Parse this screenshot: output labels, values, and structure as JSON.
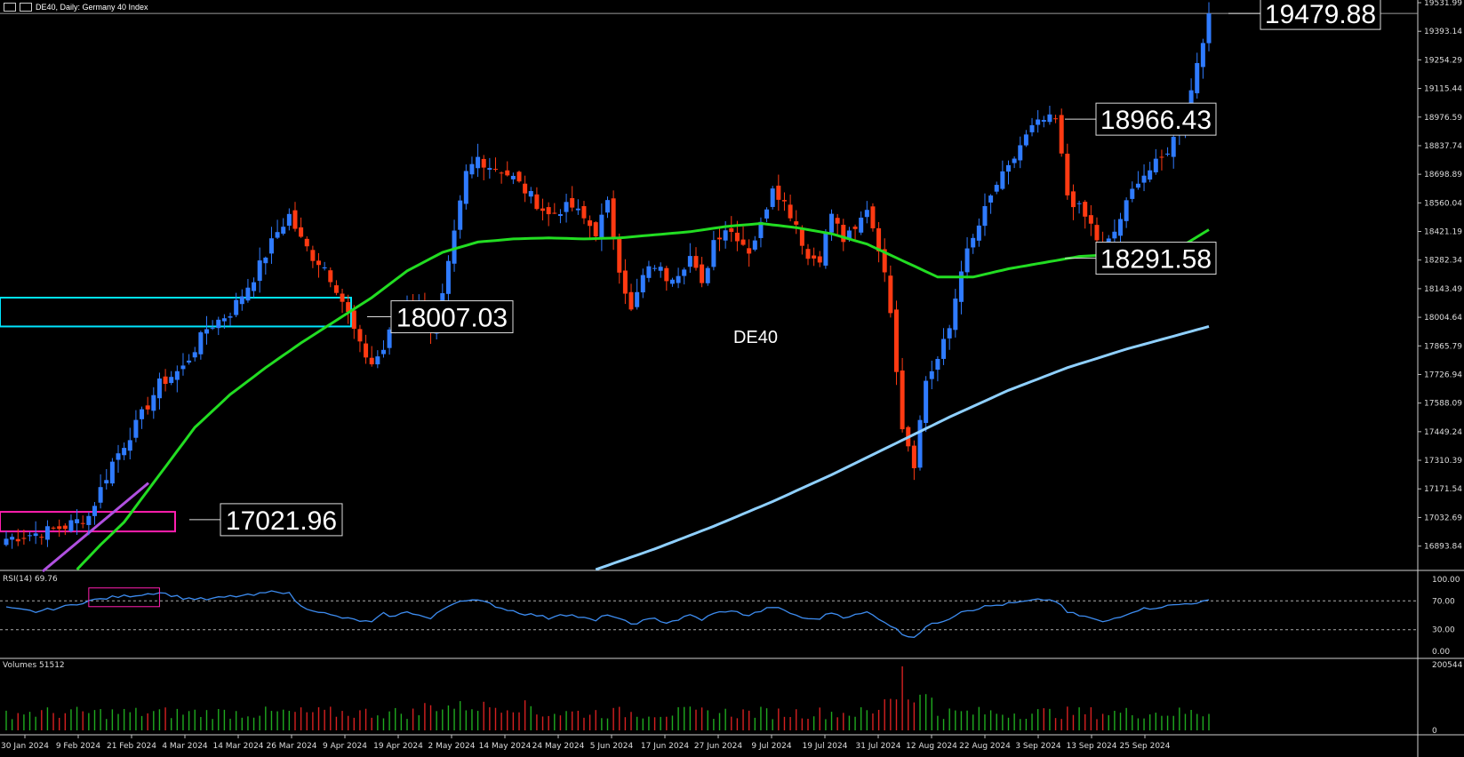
{
  "header": {
    "title": "DE40, Daily:  Germany 40 Index"
  },
  "panels": {
    "rsi_label": "RSI(14) 69.76",
    "volume_label": "Volumes 51512"
  },
  "symbol_watermark": "DE40",
  "colors": {
    "background": "#000000",
    "bull": "#2f7bff",
    "bear": "#ff3a12",
    "ma_fast": "#22dd22",
    "ma_slow": "#8fd0ff",
    "rsi": "#3d8cf0",
    "cyan_box": "#00e5ff",
    "magenta_box": "#ff1fb0",
    "trendline": "#b050e0",
    "vol_up": "#1faa1f",
    "vol_down": "#d62020"
  },
  "annotations": [
    {
      "text": "19479.88",
      "price": 19479.88,
      "anchor": "right-of-price-axis"
    },
    {
      "text": "18966.43",
      "price": 18966.43,
      "anchor": "top-right"
    },
    {
      "text": "18291.58",
      "price": 18291.58,
      "anchor": "right"
    },
    {
      "text": "18007.03",
      "price": 18007.03,
      "anchor": "left-middle"
    },
    {
      "text": "17021.96",
      "price": 17021.96,
      "anchor": "left-lower"
    }
  ],
  "chart_data": [
    {
      "type": "candlestick",
      "title": "DE40, Daily:  Germany 40 Index",
      "y_ticks": [
        "19531.99",
        "19393.14",
        "19254.29",
        "19115.44",
        "18976.59",
        "18837.74",
        "18698.89",
        "18560.04",
        "18421.19",
        "18282.34",
        "18143.49",
        "18004.64",
        "17865.79",
        "17726.94",
        "17588.09",
        "17449.24",
        "17310.39",
        "17171.54",
        "17032.69",
        "16893.84"
      ],
      "ylim": [
        16780,
        19545
      ],
      "x_ticks": [
        "30 Jan 2024",
        "9 Feb 2024",
        "21 Feb 2024",
        "4 Mar 2024",
        "14 Mar 2024",
        "26 Mar 2024",
        "9 Apr 2024",
        "19 Apr 2024",
        "2 May 2024",
        "14 May 2024",
        "24 May 2024",
        "5 Jun 2024",
        "17 Jun 2024",
        "27 Jun 2024",
        "9 Jul 2024",
        "19 Jul 2024",
        "31 Jul 2024",
        "12 Aug 2024",
        "22 Aug 2024",
        "3 Sep 2024",
        "13 Sep 2024",
        "25 Sep 2024"
      ],
      "close_path": [
        [
          0,
          16930
        ],
        [
          6,
          16960
        ],
        [
          10,
          16990
        ],
        [
          14,
          17040
        ],
        [
          18,
          17300
        ],
        [
          22,
          17480
        ],
        [
          26,
          17680
        ],
        [
          30,
          17760
        ],
        [
          34,
          17950
        ],
        [
          38,
          18030
        ],
        [
          42,
          18200
        ],
        [
          46,
          18420
        ],
        [
          48,
          18500
        ],
        [
          50,
          18380
        ],
        [
          52,
          18300
        ],
        [
          54,
          18250
        ],
        [
          56,
          18150
        ],
        [
          58,
          18020
        ],
        [
          60,
          17860
        ],
        [
          62,
          17780
        ],
        [
          64,
          17850
        ],
        [
          66,
          18000
        ],
        [
          68,
          18100
        ],
        [
          70,
          18050
        ],
        [
          72,
          17950
        ],
        [
          74,
          18100
        ],
        [
          76,
          18400
        ],
        [
          78,
          18700
        ],
        [
          80,
          18780
        ],
        [
          82,
          18740
        ],
        [
          84,
          18720
        ],
        [
          86,
          18680
        ],
        [
          88,
          18620
        ],
        [
          90,
          18560
        ],
        [
          92,
          18500
        ],
        [
          94,
          18530
        ],
        [
          96,
          18540
        ],
        [
          98,
          18480
        ],
        [
          100,
          18420
        ],
        [
          102,
          18550
        ],
        [
          104,
          18250
        ],
        [
          106,
          18030
        ],
        [
          108,
          18200
        ],
        [
          110,
          18260
        ],
        [
          112,
          18200
        ],
        [
          114,
          18230
        ],
        [
          116,
          18300
        ],
        [
          118,
          18150
        ],
        [
          120,
          18380
        ],
        [
          122,
          18440
        ],
        [
          124,
          18400
        ],
        [
          126,
          18330
        ],
        [
          128,
          18450
        ],
        [
          130,
          18650
        ],
        [
          132,
          18560
        ],
        [
          134,
          18460
        ],
        [
          136,
          18290
        ],
        [
          138,
          18300
        ],
        [
          140,
          18510
        ],
        [
          142,
          18380
        ],
        [
          144,
          18420
        ],
        [
          146,
          18540
        ],
        [
          148,
          18350
        ],
        [
          150,
          18050
        ],
        [
          152,
          17480
        ],
        [
          154,
          17300
        ],
        [
          156,
          17700
        ],
        [
          158,
          17800
        ],
        [
          160,
          17950
        ],
        [
          162,
          18250
        ],
        [
          164,
          18380
        ],
        [
          166,
          18520
        ],
        [
          168,
          18650
        ],
        [
          170,
          18720
        ],
        [
          172,
          18840
        ],
        [
          174,
          18920
        ],
        [
          176,
          18960
        ],
        [
          178,
          18960
        ],
        [
          180,
          18600
        ],
        [
          182,
          18530
        ],
        [
          184,
          18450
        ],
        [
          186,
          18320
        ],
        [
          188,
          18420
        ],
        [
          190,
          18550
        ],
        [
          192,
          18680
        ],
        [
          194,
          18720
        ],
        [
          196,
          18770
        ],
        [
          198,
          18870
        ],
        [
          200,
          18960
        ],
        [
          202,
          19250
        ],
        [
          204,
          19479.88
        ]
      ],
      "moving_average_fast_path": [
        [
          12,
          16780
        ],
        [
          16,
          16900
        ],
        [
          20,
          17010
        ],
        [
          26,
          17240
        ],
        [
          32,
          17470
        ],
        [
          38,
          17630
        ],
        [
          44,
          17760
        ],
        [
          50,
          17880
        ],
        [
          56,
          17990
        ],
        [
          62,
          18100
        ],
        [
          68,
          18230
        ],
        [
          74,
          18320
        ],
        [
          80,
          18370
        ],
        [
          86,
          18385
        ],
        [
          92,
          18390
        ],
        [
          98,
          18385
        ],
        [
          104,
          18390
        ],
        [
          110,
          18405
        ],
        [
          116,
          18420
        ],
        [
          122,
          18445
        ],
        [
          128,
          18460
        ],
        [
          134,
          18440
        ],
        [
          140,
          18410
        ],
        [
          146,
          18360
        ],
        [
          152,
          18280
        ],
        [
          158,
          18200
        ],
        [
          164,
          18200
        ],
        [
          170,
          18240
        ],
        [
          176,
          18270
        ],
        [
          182,
          18300
        ],
        [
          188,
          18310
        ],
        [
          194,
          18330
        ],
        [
          200,
          18360
        ],
        [
          204,
          18430
        ]
      ],
      "moving_average_slow_path": [
        [
          100,
          16780
        ],
        [
          110,
          16880
        ],
        [
          120,
          16990
        ],
        [
          130,
          17110
        ],
        [
          140,
          17240
        ],
        [
          150,
          17380
        ],
        [
          160,
          17520
        ],
        [
          170,
          17650
        ],
        [
          180,
          17760
        ],
        [
          190,
          17850
        ],
        [
          204,
          17960
        ]
      ],
      "rsi": {
        "levels": [
          100,
          70,
          30,
          0
        ],
        "level_labels": [
          "100.00",
          "70.00",
          "30.00",
          "0.00"
        ],
        "values_path": [
          [
            0,
            60
          ],
          [
            5,
            55
          ],
          [
            10,
            62
          ],
          [
            14,
            70
          ],
          [
            18,
            75
          ],
          [
            22,
            78
          ],
          [
            26,
            82
          ],
          [
            30,
            74
          ],
          [
            34,
            72
          ],
          [
            38,
            76
          ],
          [
            42,
            78
          ],
          [
            46,
            84
          ],
          [
            48,
            80
          ],
          [
            50,
            62
          ],
          [
            52,
            58
          ],
          [
            55,
            50
          ],
          [
            58,
            45
          ],
          [
            62,
            40
          ],
          [
            64,
            52
          ],
          [
            66,
            48
          ],
          [
            68,
            56
          ],
          [
            70,
            50
          ],
          [
            72,
            45
          ],
          [
            74,
            58
          ],
          [
            76,
            68
          ],
          [
            78,
            72
          ],
          [
            80,
            70
          ],
          [
            82,
            66
          ],
          [
            84,
            60
          ],
          [
            86,
            56
          ],
          [
            88,
            52
          ],
          [
            90,
            50
          ],
          [
            92,
            46
          ],
          [
            94,
            52
          ],
          [
            96,
            50
          ],
          [
            98,
            46
          ],
          [
            100,
            42
          ],
          [
            102,
            52
          ],
          [
            104,
            44
          ],
          [
            106,
            38
          ],
          [
            108,
            42
          ],
          [
            110,
            45
          ],
          [
            112,
            40
          ],
          [
            114,
            44
          ],
          [
            116,
            50
          ],
          [
            118,
            44
          ],
          [
            120,
            52
          ],
          [
            122,
            56
          ],
          [
            124,
            54
          ],
          [
            126,
            50
          ],
          [
            128,
            56
          ],
          [
            130,
            62
          ],
          [
            132,
            56
          ],
          [
            134,
            50
          ],
          [
            136,
            44
          ],
          [
            138,
            46
          ],
          [
            140,
            54
          ],
          [
            142,
            48
          ],
          [
            144,
            50
          ],
          [
            146,
            54
          ],
          [
            148,
            46
          ],
          [
            150,
            36
          ],
          [
            152,
            24
          ],
          [
            154,
            20
          ],
          [
            156,
            34
          ],
          [
            158,
            40
          ],
          [
            160,
            46
          ],
          [
            162,
            56
          ],
          [
            164,
            58
          ],
          [
            166,
            62
          ],
          [
            168,
            64
          ],
          [
            170,
            66
          ],
          [
            172,
            68
          ],
          [
            174,
            70
          ],
          [
            176,
            72
          ],
          [
            178,
            70
          ],
          [
            180,
            54
          ],
          [
            182,
            50
          ],
          [
            184,
            46
          ],
          [
            186,
            40
          ],
          [
            188,
            46
          ],
          [
            190,
            52
          ],
          [
            192,
            58
          ],
          [
            194,
            60
          ],
          [
            196,
            62
          ],
          [
            198,
            64
          ],
          [
            200,
            66
          ],
          [
            202,
            68
          ],
          [
            204,
            69.76
          ]
        ]
      },
      "volume": {
        "axis_labels": [
          "200544",
          "0"
        ],
        "max": 200544,
        "last": 51512
      }
    }
  ]
}
